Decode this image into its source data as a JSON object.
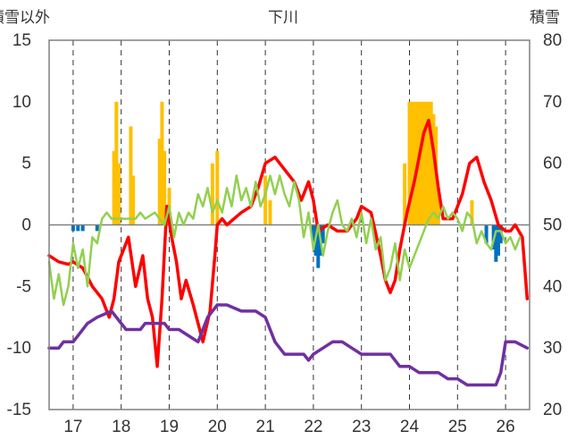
{
  "chart_data": {
    "type": "bar+line",
    "title": "下川",
    "left_axis_label": "積雪以外",
    "right_axis_label": "積雪",
    "y_left": {
      "min": -15,
      "max": 15,
      "ticks": [
        15,
        10,
        5,
        0,
        -5,
        -10,
        -15
      ]
    },
    "y_right": {
      "min": 20,
      "max": 80,
      "ticks": [
        80,
        70,
        60,
        50,
        40,
        30,
        20
      ]
    },
    "x": {
      "min": 16.5,
      "max": 26.5,
      "ticks": [
        17,
        18,
        19,
        20,
        21,
        22,
        23,
        24,
        25,
        26
      ]
    },
    "grid": {
      "vertical_dashed": true,
      "horizontal": false,
      "zero_line": true
    },
    "colors": {
      "red_line": "#ff0000",
      "green_line": "#92d050",
      "purple_line": "#7030a0",
      "orange_bar": "#ffc000",
      "blue_bar": "#0070c0",
      "axis": "#808080",
      "text": "#333333"
    },
    "series": [
      {
        "color": "#ff0000",
        "axis": "left",
        "x": [
          16.5,
          16.7,
          16.9,
          17.0,
          17.2,
          17.4,
          17.6,
          17.75,
          17.85,
          17.95,
          18.15,
          18.3,
          18.45,
          18.55,
          18.65,
          18.75,
          18.85,
          18.95,
          19.05,
          19.15,
          19.25,
          19.35,
          19.5,
          19.7,
          19.85,
          19.95,
          20.0,
          20.1,
          20.2,
          20.35,
          20.5,
          20.7,
          20.85,
          21.0,
          21.2,
          21.4,
          21.6,
          21.75,
          21.9,
          22.0,
          22.1,
          22.3,
          22.5,
          22.7,
          22.9,
          23.0,
          23.2,
          23.4,
          23.5,
          23.6,
          23.7,
          23.8,
          23.95,
          24.1,
          24.2,
          24.3,
          24.4,
          24.5,
          24.6,
          24.7,
          24.9,
          25.1,
          25.25,
          25.4,
          25.55,
          25.7,
          25.85,
          26.0,
          26.1,
          26.2,
          26.35,
          26.45
        ],
        "y": [
          -2.5,
          -3.0,
          -3.2,
          -3.0,
          -3.5,
          -5.0,
          -6.0,
          -7.5,
          -6.0,
          -3.0,
          -1.0,
          -5.0,
          -2.5,
          -6.0,
          -7.5,
          -11.5,
          -6.0,
          1.5,
          -1.0,
          -3.0,
          -6.0,
          -4.5,
          -6.5,
          -9.5,
          -7.0,
          -2.5,
          0.0,
          0.5,
          0.0,
          0.5,
          1.0,
          1.5,
          3.0,
          5.0,
          5.5,
          4.5,
          3.5,
          2.0,
          3.5,
          2.0,
          -0.5,
          0.0,
          -0.5,
          -0.5,
          0.5,
          1.5,
          1.0,
          -2.5,
          -4.5,
          -5.5,
          -4.5,
          -2.0,
          1.0,
          3.5,
          5.5,
          7.5,
          8.5,
          6.0,
          3.0,
          0.5,
          0.5,
          2.5,
          5.0,
          5.5,
          3.5,
          2.0,
          0.0,
          -0.5,
          -0.5,
          0.0,
          -1.0,
          -6.0
        ]
      },
      {
        "color": "#92d050",
        "axis": "left",
        "x": [
          16.5,
          16.6,
          16.7,
          16.8,
          16.9,
          17.0,
          17.1,
          17.2,
          17.3,
          17.4,
          17.5,
          17.6,
          17.7,
          17.8,
          18.3,
          18.4,
          18.5,
          18.7,
          18.8,
          18.9,
          19.0,
          19.1,
          19.2,
          19.3,
          19.4,
          19.5,
          19.6,
          19.7,
          19.8,
          19.9,
          20.0,
          20.1,
          20.2,
          20.3,
          20.4,
          20.5,
          20.6,
          20.7,
          20.8,
          20.9,
          21.0,
          21.1,
          21.2,
          21.3,
          21.4,
          21.5,
          21.6,
          21.7,
          21.8,
          21.9,
          22.0,
          22.1,
          22.2,
          22.3,
          22.4,
          22.5,
          22.6,
          22.7,
          22.8,
          22.9,
          23.0,
          23.1,
          23.2,
          23.3,
          23.4,
          23.5,
          23.6,
          23.7,
          23.8,
          23.9,
          24.0,
          24.1,
          24.2,
          24.3,
          24.4,
          24.5,
          24.6,
          24.7,
          24.8,
          24.9,
          25.0,
          25.1,
          25.2,
          25.3,
          25.4,
          25.5,
          25.6,
          25.7,
          25.8,
          25.9,
          26.0,
          26.1,
          26.2,
          26.3
        ],
        "y": [
          -3.0,
          -6.0,
          -4.0,
          -6.5,
          -5.0,
          -1.5,
          -3.5,
          -2.0,
          -5.0,
          -1.0,
          -1.5,
          0.5,
          1.0,
          0.5,
          0.5,
          1.0,
          0.5,
          1.0,
          0.5,
          0.0,
          1.5,
          -1.0,
          1.0,
          0.0,
          1.0,
          0.5,
          2.5,
          1.5,
          3.0,
          1.0,
          2.0,
          1.0,
          3.0,
          1.5,
          4.0,
          2.0,
          3.0,
          1.5,
          3.5,
          1.5,
          2.5,
          4.0,
          2.5,
          4.0,
          2.5,
          1.5,
          3.5,
          2.0,
          -1.0,
          1.0,
          -2.0,
          0.0,
          -2.5,
          -0.5,
          1.0,
          2.0,
          0.0,
          -0.5,
          0.5,
          -1.0,
          1.0,
          -1.5,
          0.5,
          -2.0,
          -1.0,
          -4.5,
          -3.5,
          -1.5,
          -4.5,
          -2.0,
          -3.5,
          -2.5,
          -1.5,
          -0.5,
          0.5,
          1.0,
          0.5,
          1.5,
          0.5,
          1.0,
          0.5,
          -0.5,
          1.0,
          0.5,
          -1.5,
          -0.5,
          -1.5,
          -2.0,
          -0.5,
          -0.5,
          -1.5,
          -1.0,
          -2.0,
          -1.0
        ]
      },
      {
        "color": "#7030a0",
        "axis": "right",
        "x": [
          16.5,
          16.7,
          16.8,
          17.0,
          17.1,
          17.3,
          17.5,
          17.8,
          18.1,
          18.4,
          18.5,
          18.9,
          19.0,
          19.2,
          19.4,
          19.6,
          19.8,
          20.0,
          20.2,
          20.5,
          20.8,
          21.0,
          21.2,
          21.4,
          21.6,
          21.8,
          21.9,
          22.0,
          22.2,
          22.4,
          22.6,
          22.8,
          23.0,
          23.2,
          23.4,
          23.6,
          23.8,
          24.0,
          24.2,
          24.4,
          24.6,
          24.8,
          25.0,
          25.2,
          25.4,
          25.6,
          25.8,
          25.9,
          26.0,
          26.2,
          26.45
        ],
        "y": [
          30,
          30,
          31,
          31,
          32,
          34,
          35,
          36,
          33,
          33,
          34,
          34,
          33,
          33,
          32,
          31,
          35,
          37,
          37,
          36,
          36,
          35,
          31,
          29,
          29,
          29,
          28,
          29,
          30,
          31,
          31,
          30,
          29,
          29,
          29,
          29,
          27,
          27,
          26,
          26,
          26,
          25,
          25,
          24,
          24,
          24,
          24,
          26,
          31,
          31,
          30
        ]
      },
      {
        "color": "#ffc000",
        "type": "bar",
        "axis": "left",
        "x": [
          17.85,
          17.9,
          17.95,
          18.2,
          18.25,
          18.8,
          18.85,
          18.9,
          19.0,
          19.9,
          20.0,
          21.0,
          21.1,
          23.9,
          24.0,
          24.05,
          24.1,
          24.15,
          24.2,
          24.25,
          24.3,
          24.35,
          24.4,
          24.45,
          24.5,
          24.55,
          24.6,
          25.3
        ],
        "y": [
          6,
          10,
          5,
          8,
          4,
          7,
          10,
          6,
          3,
          5,
          6,
          4,
          2,
          5,
          10,
          10,
          10,
          10,
          10,
          10,
          10,
          10,
          10,
          10,
          9,
          8,
          3,
          2
        ]
      },
      {
        "color": "#0070c0",
        "type": "bar",
        "axis": "left",
        "x": [
          17.0,
          17.1,
          17.2,
          17.5,
          22.0,
          22.05,
          22.1,
          22.15,
          22.2,
          25.6,
          25.75,
          25.8,
          25.85,
          25.9
        ],
        "y": [
          -0.5,
          -0.5,
          -0.5,
          -0.5,
          -1.5,
          -2.5,
          -3.5,
          -2.5,
          -1.5,
          -1.5,
          -2.0,
          -3.0,
          -2.5,
          -1.5
        ]
      }
    ]
  }
}
